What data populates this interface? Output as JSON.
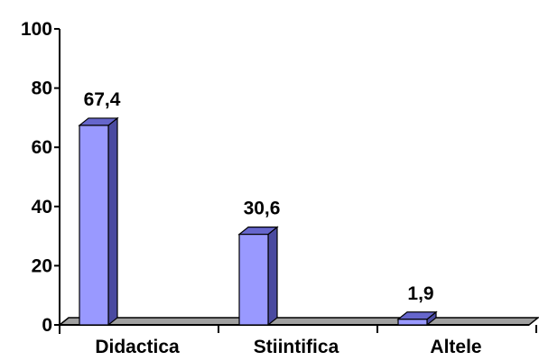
{
  "chart_data": {
    "type": "bar",
    "style": "3d-column",
    "categories": [
      "Didactica",
      "Stiintifica",
      "Altele"
    ],
    "values": [
      67.4,
      30.6,
      1.9
    ],
    "data_labels": [
      "67,4",
      "30,6",
      "1,9"
    ],
    "ylim": [
      0,
      100
    ],
    "yticks": [
      0,
      20,
      40,
      60,
      80,
      100
    ],
    "title": "",
    "xlabel": "",
    "ylabel": "",
    "grid": false,
    "legend": "none",
    "colors": {
      "bar_front": "#9999ff",
      "bar_top": "#6666cc",
      "bar_side": "#4a4aa0",
      "floor": "#a0a0a0",
      "axis": "#000000"
    }
  }
}
